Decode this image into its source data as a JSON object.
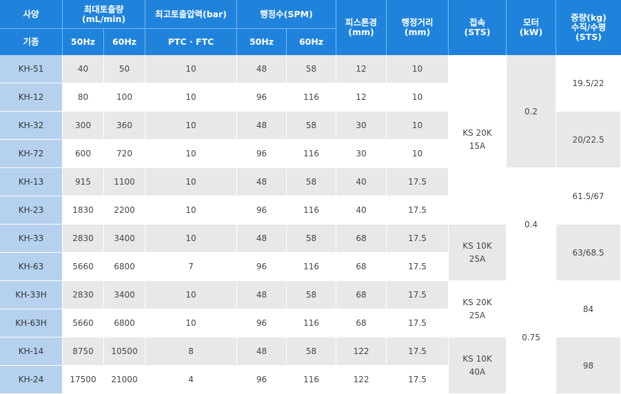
{
  "header": {
    "spec": "사양",
    "model": "기종",
    "flow_l1": "최대토출량",
    "flow_l2": "(mL/min)",
    "hz50": "50Hz",
    "hz60": "60Hz",
    "pressure": "최고토출압력(bar)",
    "ptc_ftc": "PTC · FTC",
    "spm": "행정수(SPM)",
    "spm50": "50Hz",
    "spm60": "60Hz",
    "piston_l1": "피스톤경",
    "piston_l2": "(mm)",
    "stroke_l1": "행정거리",
    "stroke_l2": "(mm)",
    "conn_l1": "접속",
    "conn_l2": "(STS)",
    "motor_l1": "모터",
    "motor_l2": "(kW)",
    "weight_l1": "중량(kg)",
    "weight_l2": "수직/수평",
    "weight_l3": "(STS)"
  },
  "rows": [
    {
      "model": "KH-51",
      "flow50": "40",
      "flow60": "50",
      "pressure": "10",
      "spm50": "48",
      "spm60": "58",
      "piston": "12",
      "stroke": "10"
    },
    {
      "model": "KH-12",
      "flow50": "80",
      "flow60": "100",
      "pressure": "10",
      "spm50": "96",
      "spm60": "116",
      "piston": "12",
      "stroke": "10"
    },
    {
      "model": "KH-32",
      "flow50": "300",
      "flow60": "360",
      "pressure": "10",
      "spm50": "48",
      "spm60": "58",
      "piston": "30",
      "stroke": "10"
    },
    {
      "model": "KH-72",
      "flow50": "600",
      "flow60": "720",
      "pressure": "10",
      "spm50": "96",
      "spm60": "116",
      "piston": "30",
      "stroke": "10"
    },
    {
      "model": "KH-13",
      "flow50": "915",
      "flow60": "1100",
      "pressure": "10",
      "spm50": "48",
      "spm60": "58",
      "piston": "40",
      "stroke": "17.5"
    },
    {
      "model": "KH-23",
      "flow50": "1830",
      "flow60": "2200",
      "pressure": "10",
      "spm50": "96",
      "spm60": "116",
      "piston": "40",
      "stroke": "17.5"
    },
    {
      "model": "KH-33",
      "flow50": "2830",
      "flow60": "3400",
      "pressure": "10",
      "spm50": "48",
      "spm60": "58",
      "piston": "68",
      "stroke": "17.5"
    },
    {
      "model": "KH-63",
      "flow50": "5660",
      "flow60": "6800",
      "pressure": "7",
      "spm50": "96",
      "spm60": "116",
      "piston": "68",
      "stroke": "17.5"
    },
    {
      "model": "KH-33H",
      "flow50": "2830",
      "flow60": "3400",
      "pressure": "10",
      "spm50": "48",
      "spm60": "58",
      "piston": "68",
      "stroke": "17.5"
    },
    {
      "model": "KH-63H",
      "flow50": "5660",
      "flow60": "6800",
      "pressure": "10",
      "spm50": "96",
      "spm60": "116",
      "piston": "68",
      "stroke": "17.5"
    },
    {
      "model": "KH-14",
      "flow50": "8750",
      "flow60": "10500",
      "pressure": "8",
      "spm50": "48",
      "spm60": "58",
      "piston": "122",
      "stroke": "17.5"
    },
    {
      "model": "KH-24",
      "flow50": "17500",
      "flow60": "21000",
      "pressure": "4",
      "spm50": "96",
      "spm60": "116",
      "piston": "122",
      "stroke": "17.5"
    }
  ],
  "connection": {
    "g1_l1": "KS 20K",
    "g1_l2": "15A",
    "g2_l1": "KS 10K",
    "g2_l2": "25A",
    "g3_l1": "KS 20K",
    "g3_l2": "25A",
    "g4_l1": "KS 10K",
    "g4_l2": "40A"
  },
  "motor": {
    "g1": "0.2",
    "g2": "0.4",
    "g3": "0.75"
  },
  "weight": {
    "g1": "19.5/22",
    "g2": "20/22.5",
    "g3": "61.5/67",
    "g4": "63/68.5",
    "g5": "84",
    "g6": "98"
  }
}
